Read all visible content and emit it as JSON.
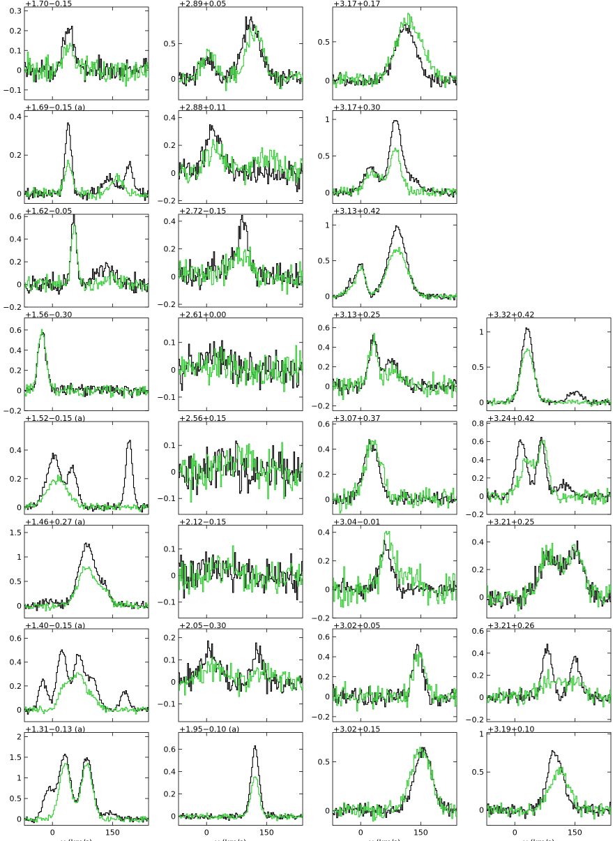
{
  "figure": {
    "xlabel": "v (km/s)",
    "colors": {
      "series_a": "#000000",
      "series_b": "#33cc33",
      "axes": "#000000"
    },
    "x_ticks": [
      0,
      150
    ],
    "xlim": [
      -70,
      240
    ]
  },
  "chart_data": [
    {
      "col": 0,
      "row": 0,
      "title": "+1.70−0.15",
      "type": "line",
      "ylim": [
        -0.15,
        0.32
      ],
      "yticks": [
        -0.1,
        0,
        0.1,
        0.2,
        0.3
      ],
      "yticklabels": [
        "−0.1",
        "0",
        "0.1",
        "0.2",
        "0.3"
      ],
      "noise": [
        0.04,
        0.05
      ],
      "peaks_a": [
        [
          40,
          0.15,
          12
        ],
        [
          30,
          0.08,
          10
        ]
      ],
      "peaks_b": [
        [
          40,
          0.12,
          12
        ]
      ]
    },
    {
      "col": 0,
      "row": 1,
      "title": "+1.69−0.15 (a)",
      "type": "line",
      "ylim": [
        -0.05,
        0.43
      ],
      "yticks": [
        0,
        0.2,
        0.4
      ],
      "yticklabels": [
        "0",
        "0.2",
        "0.4"
      ],
      "noise": [
        0.02,
        0.02
      ],
      "peaks_a": [
        [
          38,
          0.35,
          8
        ],
        [
          140,
          0.08,
          15
        ],
        [
          190,
          0.15,
          10
        ]
      ],
      "peaks_b": [
        [
          40,
          0.15,
          10
        ],
        [
          160,
          0.08,
          15
        ]
      ]
    },
    {
      "col": 0,
      "row": 2,
      "title": "+1.62−0.05",
      "type": "line",
      "ylim": [
        -0.2,
        0.62
      ],
      "yticks": [
        -0.2,
        0,
        0.2,
        0.4,
        0.6
      ],
      "yticklabels": [
        "−0.2",
        "0",
        "0.2",
        "0.4",
        "0.6"
      ],
      "noise": [
        0.06,
        0.05
      ],
      "peaks_a": [
        [
          52,
          0.55,
          7
        ],
        [
          130,
          0.15,
          25
        ]
      ],
      "peaks_b": [
        [
          52,
          0.5,
          7
        ],
        [
          150,
          0.06,
          20
        ]
      ]
    },
    {
      "col": 0,
      "row": 3,
      "title": "+1.56−0.30",
      "type": "line",
      "ylim": [
        -0.2,
        0.72
      ],
      "yticks": [
        -0.2,
        0,
        0.2,
        0.4,
        0.6
      ],
      "yticklabels": [
        "−0.2",
        "0",
        "0.2",
        "0.4",
        "0.6"
      ],
      "noise": [
        0.04,
        0.04
      ],
      "peaks_a": [
        [
          -27,
          0.58,
          10
        ]
      ],
      "peaks_b": [
        [
          -27,
          0.6,
          10
        ]
      ]
    },
    {
      "col": 0,
      "row": 4,
      "title": "+1.52−0.15 (a)",
      "type": "line",
      "ylim": [
        -0.05,
        0.6
      ],
      "yticks": [
        0,
        0.2,
        0.4
      ],
      "yticklabels": [
        "0",
        "0.2",
        "0.4"
      ],
      "noise": [
        0.02,
        0.02
      ],
      "peaks_a": [
        [
          5,
          0.35,
          14
        ],
        [
          48,
          0.28,
          12
        ],
        [
          -20,
          0.1,
          12
        ],
        [
          190,
          0.48,
          8
        ]
      ],
      "peaks_b": [
        [
          10,
          0.2,
          25
        ]
      ]
    },
    {
      "col": 0,
      "row": 5,
      "title": "+1.46+0.27 (a)",
      "type": "line",
      "ylim": [
        -0.25,
        1.65
      ],
      "yticks": [
        0,
        0.5,
        1,
        1.5
      ],
      "yticklabels": [
        "0",
        "0.5",
        "1",
        "1.5"
      ],
      "noise": [
        0.06,
        0.06
      ],
      "peaks_a": [
        [
          85,
          1.25,
          20
        ],
        [
          130,
          0.35,
          12
        ],
        [
          -10,
          0.1,
          15
        ]
      ],
      "peaks_b": [
        [
          85,
          0.8,
          22
        ],
        [
          130,
          0.25,
          12
        ]
      ]
    },
    {
      "col": 0,
      "row": 6,
      "title": "+1.40−0.15 (a)",
      "type": "line",
      "ylim": [
        -0.1,
        0.68
      ],
      "yticks": [
        0,
        0.2,
        0.4,
        0.6
      ],
      "yticklabels": [
        "0",
        "0.2",
        "0.4",
        "0.6"
      ],
      "noise": [
        0.02,
        0.02
      ],
      "peaks_a": [
        [
          -25,
          0.25,
          10
        ],
        [
          22,
          0.5,
          12
        ],
        [
          65,
          0.45,
          14
        ],
        [
          100,
          0.25,
          12
        ],
        [
          180,
          0.15,
          10
        ]
      ],
      "peaks_b": [
        [
          30,
          0.2,
          15
        ],
        [
          65,
          0.3,
          15
        ],
        [
          100,
          0.1,
          12
        ]
      ]
    },
    {
      "col": 0,
      "row": 7,
      "title": "+1.31−0.13 (a)",
      "type": "line",
      "ylim": [
        -0.15,
        2.1
      ],
      "yticks": [
        0,
        0.5,
        1,
        1.5,
        2
      ],
      "yticklabels": [
        "0",
        "0.5",
        "1",
        "1.5",
        "2"
      ],
      "noise": [
        0.05,
        0.05
      ],
      "peaks_a": [
        [
          -10,
          0.7,
          14
        ],
        [
          30,
          1.55,
          14
        ],
        [
          85,
          1.5,
          14
        ],
        [
          140,
          0.15,
          15
        ]
      ],
      "peaks_b": [
        [
          30,
          1.35,
          14
        ],
        [
          85,
          1.35,
          14
        ]
      ]
    },
    {
      "col": 1,
      "row": 0,
      "title": "+2.89+0.05",
      "type": "line",
      "ylim": [
        -0.3,
        1.02
      ],
      "yticks": [
        0,
        0.5
      ],
      "yticklabels": [
        "0",
        "0.5"
      ],
      "noise": [
        0.1,
        0.1
      ],
      "peaks_a": [
        [
          110,
          0.8,
          22
        ],
        [
          0,
          0.3,
          18
        ]
      ],
      "peaks_b": [
        [
          120,
          0.7,
          20
        ],
        [
          5,
          0.3,
          18
        ]
      ]
    },
    {
      "col": 1,
      "row": 1,
      "title": "+2.88+0.11",
      "type": "line",
      "ylim": [
        -0.22,
        0.45
      ],
      "yticks": [
        -0.2,
        0,
        0.2,
        0.4
      ],
      "yticklabels": [
        "−0.2",
        "0",
        "0.2",
        "0.4"
      ],
      "noise": [
        0.07,
        0.07
      ],
      "peaks_a": [
        [
          15,
          0.3,
          18
        ]
      ],
      "peaks_b": [
        [
          20,
          0.2,
          20
        ],
        [
          150,
          0.1,
          30
        ]
      ]
    },
    {
      "col": 1,
      "row": 2,
      "title": "+2.72−0.15",
      "type": "line",
      "ylim": [
        -0.22,
        0.45
      ],
      "yticks": [
        -0.2,
        0,
        0.2,
        0.4
      ],
      "yticklabels": [
        "−0.2",
        "0",
        "0.2",
        "0.4"
      ],
      "noise": [
        0.08,
        0.07
      ],
      "peaks_a": [
        [
          90,
          0.35,
          10
        ],
        [
          60,
          0.1,
          30
        ]
      ],
      "peaks_b": [
        [
          80,
          0.15,
          30
        ]
      ]
    },
    {
      "col": 1,
      "row": 3,
      "title": "+2.61+0.00",
      "type": "line",
      "ylim": [
        -0.15,
        0.19
      ],
      "yticks": [
        -0.1,
        0,
        0.1
      ],
      "yticklabels": [
        "−0.1",
        "0",
        "0.1"
      ],
      "noise": [
        0.05,
        0.05
      ],
      "peaks_a": [
        [
          20,
          0.05,
          30
        ]
      ],
      "peaks_b": [
        [
          20,
          0.03,
          30
        ]
      ]
    },
    {
      "col": 1,
      "row": 4,
      "title": "+2.56+0.15",
      "type": "line",
      "ylim": [
        -0.16,
        0.19
      ],
      "yticks": [
        -0.1,
        0,
        0.1
      ],
      "yticklabels": [
        "−0.1",
        "0",
        "0.1"
      ],
      "noise": [
        0.06,
        0.06
      ],
      "peaks_a": [
        [
          50,
          0.04,
          30
        ]
      ],
      "peaks_b": [
        [
          80,
          0.05,
          30
        ]
      ]
    },
    {
      "col": 1,
      "row": 5,
      "title": "+2.12−0.15",
      "type": "line",
      "ylim": [
        -0.16,
        0.19
      ],
      "yticks": [
        -0.1,
        0,
        0.1
      ],
      "yticklabels": [
        "−0.1",
        "0",
        "0.1"
      ],
      "noise": [
        0.05,
        0.05
      ],
      "peaks_a": [
        [
          30,
          0.03,
          30
        ]
      ],
      "peaks_b": [
        [
          30,
          0.03,
          30
        ]
      ]
    },
    {
      "col": 1,
      "row": 6,
      "title": "+2.05−0.30",
      "type": "line",
      "ylim": [
        -0.18,
        0.24
      ],
      "yticks": [
        -0.1,
        0,
        0.1,
        0.2
      ],
      "yticklabels": [
        "−0.1",
        "0",
        "0.1",
        "0.2"
      ],
      "noise": [
        0.04,
        0.04
      ],
      "peaks_a": [
        [
          5,
          0.13,
          20
        ],
        [
          125,
          0.13,
          12
        ]
      ],
      "peaks_b": [
        [
          20,
          0.07,
          25
        ],
        [
          150,
          0.05,
          25
        ]
      ]
    },
    {
      "col": 1,
      "row": 7,
      "title": "+1.95−0.10 (a)",
      "type": "line",
      "ylim": [
        -0.08,
        0.75
      ],
      "yticks": [
        0,
        0.2,
        0.4,
        0.6
      ],
      "yticklabels": [
        "0",
        "0.2",
        "0.4",
        "0.6"
      ],
      "noise": [
        0.02,
        0.02
      ],
      "peaks_a": [
        [
          120,
          0.6,
          10
        ]
      ],
      "peaks_b": [
        [
          120,
          0.35,
          10
        ]
      ]
    },
    {
      "col": 2,
      "row": 0,
      "title": "+3.17+0.17",
      "type": "line",
      "ylim": [
        -0.25,
        0.95
      ],
      "yticks": [
        0,
        0.5
      ],
      "yticklabels": [
        "0",
        "0.5"
      ],
      "noise": [
        0.06,
        0.07
      ],
      "peaks_a": [
        [
          110,
          0.7,
          25
        ]
      ],
      "peaks_b": [
        [
          110,
          0.65,
          28
        ],
        [
          150,
          0.25,
          30
        ]
      ]
    },
    {
      "col": 2,
      "row": 1,
      "title": "+3.17+0.30",
      "type": "line",
      "ylim": [
        -0.15,
        1.12
      ],
      "yticks": [
        0,
        0.5,
        1
      ],
      "yticklabels": [
        "0",
        "0.5",
        "1"
      ],
      "noise": [
        0.04,
        0.05
      ],
      "peaks_a": [
        [
          85,
          0.95,
          14
        ],
        [
          25,
          0.35,
          18
        ],
        [
          120,
          0.2,
          20
        ]
      ],
      "peaks_b": [
        [
          85,
          0.6,
          14
        ],
        [
          30,
          0.25,
          20
        ]
      ]
    },
    {
      "col": 2,
      "row": 2,
      "title": "+3.13+0.42",
      "type": "line",
      "ylim": [
        -0.15,
        1.15
      ],
      "yticks": [
        0,
        0.5,
        1
      ],
      "yticklabels": [
        "0",
        "0.5",
        "1"
      ],
      "noise": [
        0.03,
        0.03
      ],
      "peaks_a": [
        [
          0,
          0.45,
          10
        ],
        [
          90,
          0.95,
          22
        ],
        [
          -25,
          0.2,
          10
        ]
      ],
      "peaks_b": [
        [
          0,
          0.4,
          10
        ],
        [
          90,
          0.65,
          25
        ],
        [
          -25,
          0.15,
          10
        ]
      ]
    },
    {
      "col": 2,
      "row": 3,
      "title": "+3.13+0.25",
      "type": "line",
      "ylim": [
        -0.25,
        0.7
      ],
      "yticks": [
        -0.2,
        0,
        0.2,
        0.4,
        0.6
      ],
      "yticklabels": [
        "−0.2",
        "0",
        "0.2",
        "0.4",
        "0.6"
      ],
      "noise": [
        0.05,
        0.08
      ],
      "peaks_a": [
        [
          30,
          0.5,
          10
        ],
        [
          75,
          0.25,
          20
        ]
      ],
      "peaks_b": [
        [
          30,
          0.4,
          10
        ],
        [
          80,
          0.15,
          25
        ]
      ]
    },
    {
      "col": 2,
      "row": 4,
      "title": "+3.07+0.37",
      "type": "line",
      "ylim": [
        -0.12,
        0.62
      ],
      "yticks": [
        0,
        0.2,
        0.4,
        0.6
      ],
      "yticklabels": [
        "0",
        "0.2",
        "0.4",
        "0.6"
      ],
      "noise": [
        0.04,
        0.06
      ],
      "peaks_a": [
        [
          25,
          0.45,
          18
        ]
      ],
      "peaks_b": [
        [
          30,
          0.45,
          20
        ]
      ]
    },
    {
      "col": 2,
      "row": 5,
      "title": "+3.04−0.01",
      "type": "line",
      "ylim": [
        -0.2,
        0.45
      ],
      "yticks": [
        -0.2,
        0,
        0.2,
        0.4
      ],
      "yticklabels": [
        "−0.2",
        "0",
        "0.2",
        "0.4"
      ],
      "noise": [
        0.04,
        0.09
      ],
      "peaks_a": [
        [
          60,
          0.3,
          14
        ]
      ],
      "peaks_b": [
        [
          65,
          0.3,
          14
        ],
        [
          100,
          0.1,
          30
        ]
      ]
    },
    {
      "col": 2,
      "row": 6,
      "title": "+3.02+0.05",
      "type": "line",
      "ylim": [
        -0.25,
        0.68
      ],
      "yticks": [
        -0.2,
        0,
        0.2,
        0.4,
        0.6
      ],
      "yticklabels": [
        "−0.2",
        "0",
        "0.2",
        "0.4",
        "0.6"
      ],
      "noise": [
        0.07,
        0.08
      ],
      "peaks_a": [
        [
          140,
          0.5,
          12
        ]
      ],
      "peaks_b": [
        [
          145,
          0.4,
          14
        ]
      ]
    },
    {
      "col": 2,
      "row": 7,
      "title": "+3.02+0.15",
      "type": "line",
      "ylim": [
        -0.15,
        0.8
      ],
      "yticks": [
        0,
        0.5
      ],
      "yticklabels": [
        "0",
        "0.5"
      ],
      "noise": [
        0.05,
        0.06
      ],
      "peaks_a": [
        [
          155,
          0.6,
          22
        ]
      ],
      "peaks_b": [
        [
          150,
          0.6,
          25
        ]
      ]
    },
    {
      "col": 3,
      "row": 3,
      "title": "+3.32+0.42",
      "type": "line",
      "ylim": [
        -0.12,
        1.2
      ],
      "yticks": [
        0,
        0.5,
        1
      ],
      "yticklabels": [
        "0",
        "0.5",
        "1"
      ],
      "noise": [
        0.03,
        0.03
      ],
      "peaks_a": [
        [
          30,
          1.05,
          14
        ],
        [
          150,
          0.15,
          15
        ]
      ],
      "peaks_b": [
        [
          30,
          0.75,
          16
        ]
      ]
    },
    {
      "col": 3,
      "row": 4,
      "title": "+3.24+0.42",
      "type": "line",
      "ylim": [
        -0.2,
        0.82
      ],
      "yticks": [
        -0.2,
        0,
        0.2,
        0.4,
        0.6,
        0.8
      ],
      "yticklabels": [
        "−0.2",
        "0",
        "0.2",
        "0.4",
        "0.6",
        "0.8"
      ],
      "noise": [
        0.04,
        0.06
      ],
      "peaks_a": [
        [
          15,
          0.6,
          14
        ],
        [
          65,
          0.62,
          10
        ],
        [
          120,
          0.12,
          20
        ]
      ],
      "peaks_b": [
        [
          30,
          0.4,
          16
        ],
        [
          70,
          0.6,
          12
        ]
      ]
    },
    {
      "col": 3,
      "row": 5,
      "title": "+3.21+0.25",
      "type": "line",
      "ylim": [
        -0.15,
        0.52
      ],
      "yticks": [
        0,
        0.2,
        0.4
      ],
      "yticklabels": [
        "0",
        "0.2",
        "0.4"
      ],
      "noise": [
        0.06,
        0.06
      ],
      "peaks_a": [
        [
          85,
          0.3,
          25
        ],
        [
          150,
          0.32,
          20
        ]
      ],
      "peaks_b": [
        [
          85,
          0.3,
          25
        ],
        [
          150,
          0.32,
          20
        ]
      ]
    },
    {
      "col": 3,
      "row": 6,
      "title": "+3.21+0.26",
      "type": "line",
      "ylim": [
        -0.22,
        0.62
      ],
      "yticks": [
        -0.2,
        0,
        0.2,
        0.4,
        0.6
      ],
      "yticklabels": [
        "−0.2",
        "0",
        "0.2",
        "0.4",
        "0.6"
      ],
      "noise": [
        0.04,
        0.06
      ],
      "peaks_a": [
        [
          80,
          0.45,
          12
        ],
        [
          150,
          0.35,
          12
        ]
      ],
      "peaks_b": [
        [
          90,
          0.15,
          25
        ],
        [
          150,
          0.15,
          20
        ]
      ]
    },
    {
      "col": 3,
      "row": 7,
      "title": "+3.19+0.10",
      "type": "line",
      "ylim": [
        -0.2,
        1.02
      ],
      "yticks": [
        0,
        0.5,
        1
      ],
      "yticklabels": [
        "0",
        "0.5",
        "1"
      ],
      "noise": [
        0.06,
        0.07
      ],
      "peaks_a": [
        [
          100,
          0.75,
          20
        ]
      ],
      "peaks_b": [
        [
          110,
          0.5,
          25
        ]
      ]
    }
  ]
}
